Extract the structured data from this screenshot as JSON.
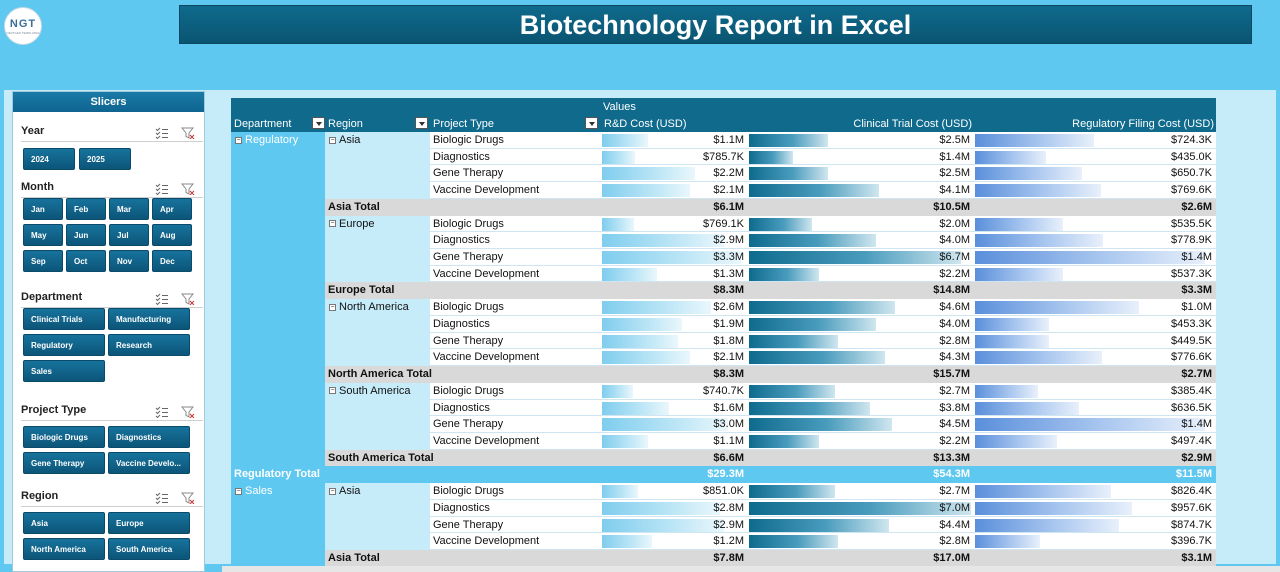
{
  "header": {
    "title": "Biotechnology Report in Excel",
    "logo_text": "NGT",
    "logo_subtext": "NEXTGEN TEMPLATES"
  },
  "slicers": {
    "panel_title": "Slicers",
    "groups": [
      {
        "title": "Year",
        "items": [
          "2024",
          "2025"
        ]
      },
      {
        "title": "Month",
        "items": [
          "Jan",
          "Feb",
          "Mar",
          "Apr",
          "May",
          "Jun",
          "Jul",
          "Aug",
          "Sep",
          "Oct",
          "Nov",
          "Dec"
        ]
      },
      {
        "title": "Department",
        "items": [
          "Clinical Trials",
          "Manufacturing",
          "Regulatory",
          "Research",
          "Sales"
        ]
      },
      {
        "title": "Project Type",
        "items": [
          "Biologic Drugs",
          "Diagnostics",
          "Gene Therapy",
          "Vaccine Develo..."
        ]
      },
      {
        "title": "Region",
        "items": [
          "Asia",
          "Europe",
          "North America",
          "South America"
        ]
      }
    ]
  },
  "pivot": {
    "values_label": "Values",
    "headers": {
      "department": "Department",
      "region": "Region",
      "project_type": "Project Type",
      "rd": "R&D Cost (USD)",
      "ct": "Clinical Trial Cost (USD)",
      "rf": "Regulatory Filing Cost (USD)"
    },
    "bar_max": {
      "rd": 3.4,
      "ct": 7.0,
      "rf": 1.45
    },
    "rows": [
      {
        "kind": "detail",
        "dept": "Regulatory",
        "region": "Asia",
        "project": "Biologic Drugs",
        "rd": "$1.1M",
        "ct": "$2.5M",
        "rf": "$724.3K",
        "v": [
          1.1,
          2.5,
          0.7243
        ]
      },
      {
        "kind": "detail",
        "project": "Diagnostics",
        "rd": "$785.7K",
        "ct": "$1.4M",
        "rf": "$435.0K",
        "v": [
          0.7857,
          1.4,
          0.435
        ]
      },
      {
        "kind": "detail",
        "project": "Gene Therapy",
        "rd": "$2.2M",
        "ct": "$2.5M",
        "rf": "$650.7K",
        "v": [
          2.2,
          2.5,
          0.6507
        ]
      },
      {
        "kind": "detail",
        "project": "Vaccine Development",
        "rd": "$2.1M",
        "ct": "$4.1M",
        "rf": "$769.6K",
        "v": [
          2.1,
          4.1,
          0.7696
        ]
      },
      {
        "kind": "subtotal",
        "label": "Asia Total",
        "rd": "$6.1M",
        "ct": "$10.5M",
        "rf": "$2.6M"
      },
      {
        "kind": "detail",
        "region": "Europe",
        "project": "Biologic Drugs",
        "rd": "$769.1K",
        "ct": "$2.0M",
        "rf": "$535.5K",
        "v": [
          0.7691,
          2.0,
          0.5355
        ]
      },
      {
        "kind": "detail",
        "project": "Diagnostics",
        "rd": "$2.9M",
        "ct": "$4.0M",
        "rf": "$778.9K",
        "v": [
          2.9,
          4.0,
          0.7789
        ]
      },
      {
        "kind": "detail",
        "project": "Gene Therapy",
        "rd": "$3.3M",
        "ct": "$6.7M",
        "rf": "$1.4M",
        "v": [
          3.3,
          6.7,
          1.4
        ]
      },
      {
        "kind": "detail",
        "project": "Vaccine Development",
        "rd": "$1.3M",
        "ct": "$2.2M",
        "rf": "$537.3K",
        "v": [
          1.3,
          2.2,
          0.5373
        ]
      },
      {
        "kind": "subtotal",
        "label": "Europe Total",
        "rd": "$8.3M",
        "ct": "$14.8M",
        "rf": "$3.3M"
      },
      {
        "kind": "detail",
        "region": "North America",
        "project": "Biologic Drugs",
        "rd": "$2.6M",
        "ct": "$4.6M",
        "rf": "$1.0M",
        "v": [
          2.6,
          4.6,
          1.0
        ]
      },
      {
        "kind": "detail",
        "project": "Diagnostics",
        "rd": "$1.9M",
        "ct": "$4.0M",
        "rf": "$453.3K",
        "v": [
          1.9,
          4.0,
          0.4533
        ]
      },
      {
        "kind": "detail",
        "project": "Gene Therapy",
        "rd": "$1.8M",
        "ct": "$2.8M",
        "rf": "$449.5K",
        "v": [
          1.8,
          2.8,
          0.4495
        ]
      },
      {
        "kind": "detail",
        "project": "Vaccine Development",
        "rd": "$2.1M",
        "ct": "$4.3M",
        "rf": "$776.6K",
        "v": [
          2.1,
          4.3,
          0.7766
        ]
      },
      {
        "kind": "subtotal",
        "label": "North America Total",
        "rd": "$8.3M",
        "ct": "$15.7M",
        "rf": "$2.7M"
      },
      {
        "kind": "detail",
        "region": "South America",
        "project": "Biologic Drugs",
        "rd": "$740.7K",
        "ct": "$2.7M",
        "rf": "$385.4K",
        "v": [
          0.7407,
          2.7,
          0.3854
        ]
      },
      {
        "kind": "detail",
        "project": "Diagnostics",
        "rd": "$1.6M",
        "ct": "$3.8M",
        "rf": "$636.5K",
        "v": [
          1.6,
          3.8,
          0.6365
        ]
      },
      {
        "kind": "detail",
        "project": "Gene Therapy",
        "rd": "$3.0M",
        "ct": "$4.5M",
        "rf": "$1.4M",
        "v": [
          3.0,
          4.5,
          1.4
        ]
      },
      {
        "kind": "detail",
        "project": "Vaccine Development",
        "rd": "$1.1M",
        "ct": "$2.2M",
        "rf": "$497.4K",
        "v": [
          1.1,
          2.2,
          0.4974
        ]
      },
      {
        "kind": "subtotal",
        "label": "South America Total",
        "rd": "$6.6M",
        "ct": "$13.3M",
        "rf": "$2.9M"
      },
      {
        "kind": "depttotal",
        "label": "Regulatory Total",
        "rd": "$29.3M",
        "ct": "$54.3M",
        "rf": "$11.5M"
      },
      {
        "kind": "detail",
        "dept": "Sales",
        "region": "Asia",
        "project": "Biologic Drugs",
        "rd": "$851.0K",
        "ct": "$2.7M",
        "rf": "$826.4K",
        "v": [
          0.851,
          2.7,
          0.8264
        ]
      },
      {
        "kind": "detail",
        "project": "Diagnostics",
        "rd": "$2.8M",
        "ct": "$7.0M",
        "rf": "$957.6K",
        "v": [
          2.8,
          7.0,
          0.9576
        ]
      },
      {
        "kind": "detail",
        "project": "Gene Therapy",
        "rd": "$2.9M",
        "ct": "$4.4M",
        "rf": "$874.7K",
        "v": [
          2.9,
          4.4,
          0.8747
        ]
      },
      {
        "kind": "detail",
        "project": "Vaccine Development",
        "rd": "$1.2M",
        "ct": "$2.8M",
        "rf": "$396.7K",
        "v": [
          1.2,
          2.8,
          0.3967
        ]
      },
      {
        "kind": "subtotal",
        "label": "Asia Total",
        "rd": "$7.8M",
        "ct": "$17.0M",
        "rf": "$3.1M"
      }
    ]
  }
}
